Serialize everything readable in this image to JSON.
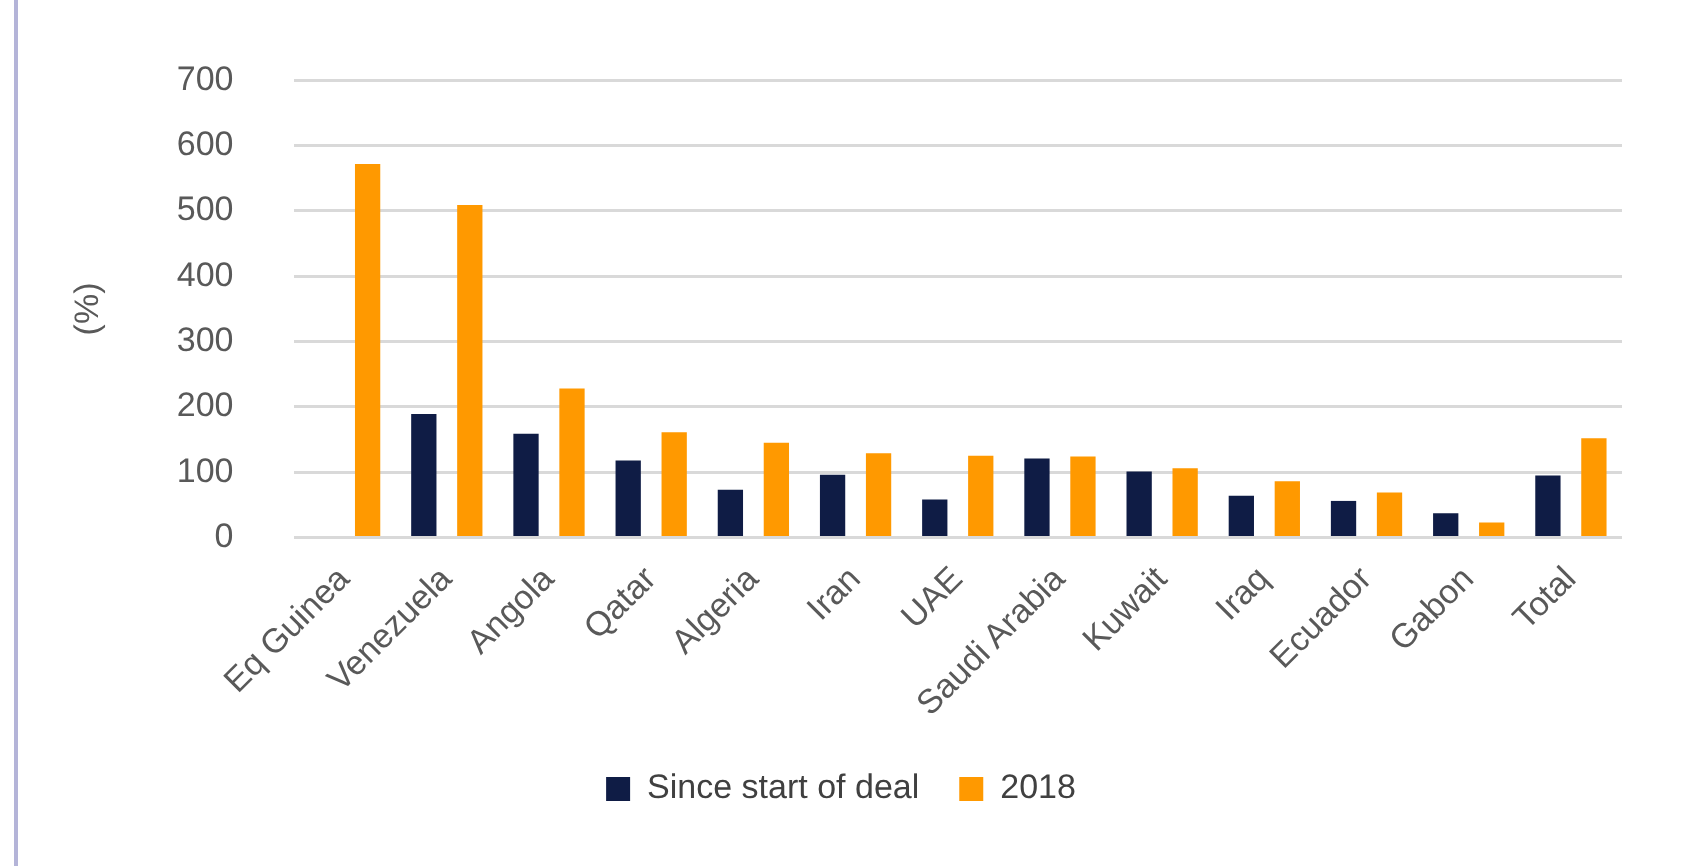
{
  "chart_data": {
    "type": "bar",
    "ylabel": "(%)",
    "categories": [
      "Eq Guinea",
      "Venezuela",
      "Angola",
      "Qatar",
      "Algeria",
      "Iran",
      "UAE",
      "Saudi Arabia",
      "Kuwait",
      "Iraq",
      "Ecuador",
      "Gabon",
      "Total"
    ],
    "series": [
      {
        "name": "Since start of deal",
        "color": "#0f1c45",
        "values": [
          null,
          189,
          159,
          118,
          73,
          96,
          58,
          121,
          101,
          64,
          56,
          37,
          95
        ]
      },
      {
        "name": "2018",
        "color": "#ff9900",
        "values": [
          572,
          509,
          228,
          161,
          145,
          129,
          125,
          124,
          106,
          86,
          69,
          23,
          152
        ]
      }
    ],
    "ylim": [
      0,
      700
    ],
    "yticks": [
      0,
      100,
      200,
      300,
      400,
      500,
      600,
      700
    ],
    "grid": "y",
    "legend": "bottom"
  }
}
